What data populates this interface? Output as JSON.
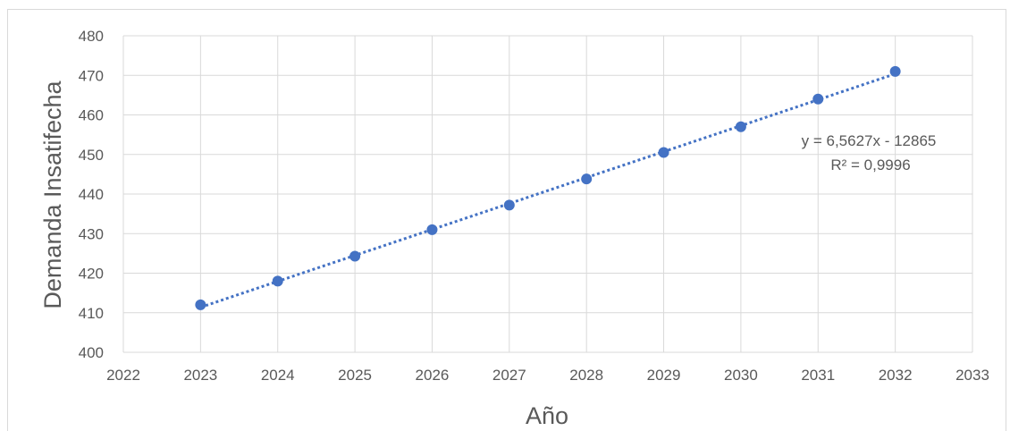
{
  "chart_data": {
    "type": "scatter",
    "xlabel": "Año",
    "ylabel": "Demanda Insatifecha",
    "xlim": [
      2022,
      2033
    ],
    "ylim": [
      400,
      480
    ],
    "x_ticks": [
      2022,
      2023,
      2024,
      2025,
      2026,
      2027,
      2028,
      2029,
      2030,
      2031,
      2032,
      2033
    ],
    "y_ticks": [
      400,
      410,
      420,
      430,
      440,
      450,
      460,
      470,
      480
    ],
    "grid": true,
    "series": [
      {
        "x": [
          2023,
          2024,
          2025,
          2026,
          2027,
          2028,
          2029,
          2030,
          2031,
          2032
        ],
        "y": [
          412,
          418,
          424.3,
          431,
          437.2,
          443.8,
          450.5,
          457,
          464,
          471
        ],
        "color": "#4472c4"
      }
    ],
    "trendline": {
      "type": "linear",
      "style": "dotted",
      "color": "#4472c4",
      "equation": "y = 6,5627x - 12865",
      "r_squared": "R² = 0,9996"
    }
  }
}
